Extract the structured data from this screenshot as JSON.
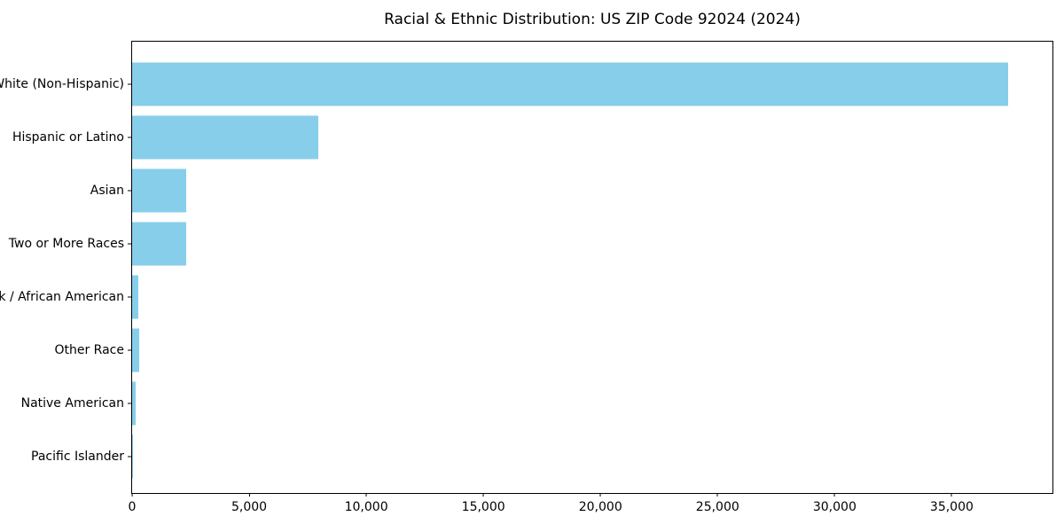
{
  "title": "Racial & Ethnic Distribution: US ZIP Code 92024 (2024)",
  "chart_data": {
    "type": "bar",
    "orientation": "horizontal",
    "title": "Racial & Ethnic Distribution: US ZIP Code 92024 (2024)",
    "xlabel": "",
    "ylabel": "",
    "categories": [
      "White (Non-Hispanic)",
      "Hispanic or Latino",
      "Asian",
      "Two or More Races",
      "Black / African American",
      "Other Race",
      "Native American",
      "Pacific Islander"
    ],
    "values": [
      37400,
      7950,
      2300,
      2320,
      270,
      300,
      150,
      35
    ],
    "xlim": [
      0,
      39300
    ],
    "x_ticks": [
      0,
      5000,
      10000,
      15000,
      20000,
      25000,
      30000,
      35000
    ],
    "x_tick_labels": [
      "0",
      "5,000",
      "10,000",
      "15,000",
      "20,000",
      "25,000",
      "30,000",
      "35,000"
    ],
    "bar_color": "#87CEEB",
    "grid": false,
    "legend_position": "none"
  }
}
